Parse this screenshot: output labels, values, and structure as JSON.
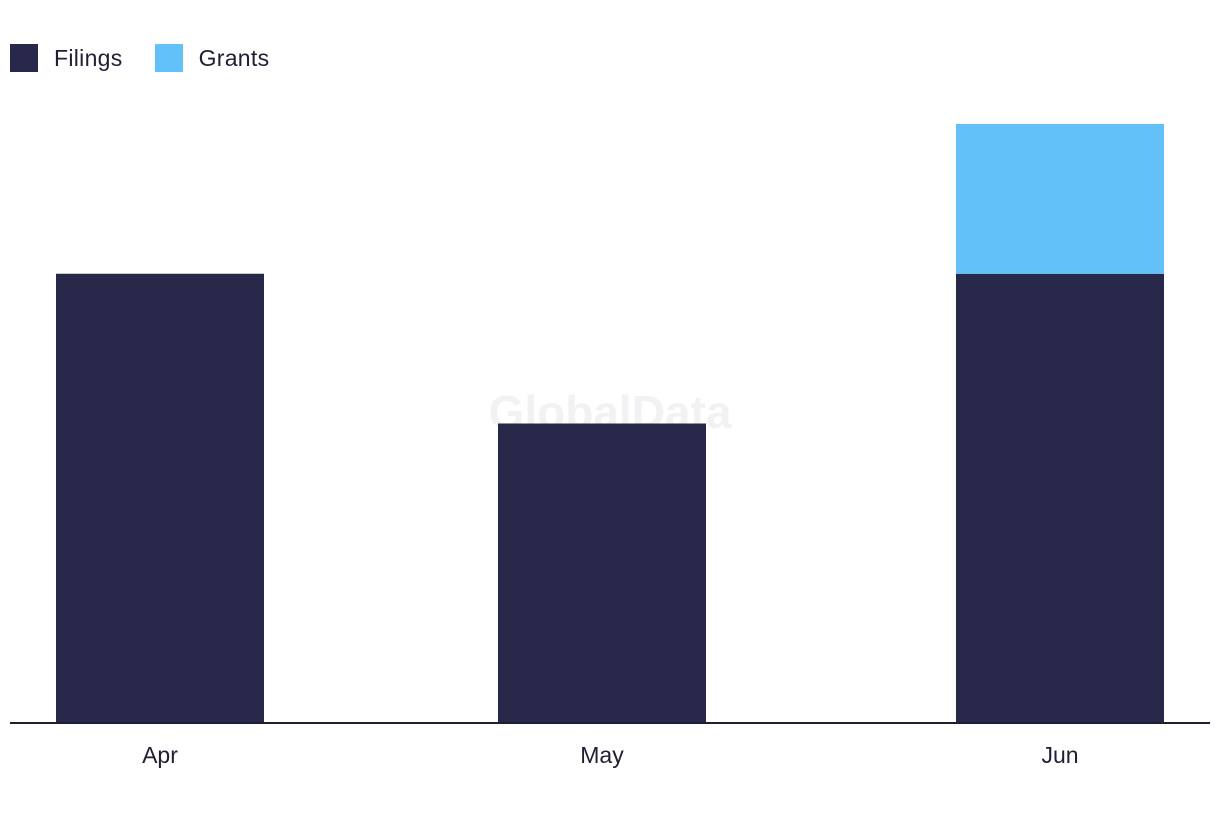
{
  "chart_data": {
    "type": "bar",
    "stacked": true,
    "categories": [
      "Apr",
      "May",
      "Jun"
    ],
    "series": [
      {
        "name": "Filings",
        "color": "#28284b",
        "values": [
          3,
          2,
          3
        ]
      },
      {
        "name": "Grants",
        "color": "#63c1f9",
        "values": [
          0,
          0,
          1
        ]
      }
    ],
    "ylim": [
      0,
      4
    ],
    "grid": false,
    "legend_position": "top-left",
    "watermark": "GlobalData"
  }
}
